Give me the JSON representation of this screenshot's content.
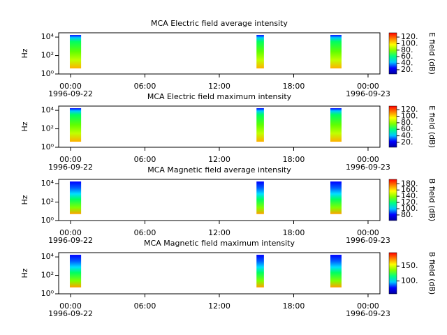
{
  "chart_data": [
    {
      "type": "spectrogram",
      "title": "MCA  Electric field average intensity",
      "ylabel": "Hz",
      "colorbar_label": "E field (dB)",
      "colormap": [
        "#0000a0",
        "#0000ff",
        "#00c8ff",
        "#00ff80",
        "#80ff00",
        "#ffff00",
        "#ff8000",
        "#ff0000"
      ],
      "xlim": [
        -0.96,
        24.96
      ],
      "xticks": [
        {
          "value": 0,
          "label": "00:00"
        },
        {
          "value": 6,
          "label": "06:00"
        },
        {
          "value": 12,
          "label": "12:00"
        },
        {
          "value": 18,
          "label": "18:00"
        },
        {
          "value": 24,
          "label": "00:00"
        }
      ],
      "x_dates": [
        {
          "value": 0,
          "label": "1996-09-22"
        },
        {
          "value": 24,
          "label": "1996-09-23"
        }
      ],
      "log_y": true,
      "ylim": [
        1,
        29000
      ],
      "yticks": [
        {
          "value": 1,
          "label": "10⁰"
        },
        {
          "value": 100,
          "label": "10²"
        },
        {
          "value": 10000,
          "label": "10⁴"
        }
      ],
      "clim": [
        7,
        133
      ],
      "cticks": [
        {
          "value": 20,
          "label": "20."
        },
        {
          "value": 40,
          "label": "40."
        },
        {
          "value": 60,
          "label": "60."
        },
        {
          "value": 80,
          "label": "80."
        },
        {
          "value": 100,
          "label": "100."
        },
        {
          "value": 120,
          "label": "120."
        }
      ],
      "segments": [
        {
          "start": -0.06,
          "end": 0.85,
          "freq": [
            4,
            17000
          ]
        },
        {
          "start": 15.0,
          "end": 15.6,
          "freq": [
            4,
            17000
          ]
        },
        {
          "start": 20.96,
          "end": 21.86,
          "freq": [
            4,
            17000
          ]
        }
      ]
    },
    {
      "type": "spectrogram",
      "title": "MCA  Electric field maximum intensity",
      "ylabel": "Hz",
      "colorbar_label": "E field (dB)",
      "colormap": [
        "#0000a0",
        "#0000ff",
        "#00c8ff",
        "#00ff80",
        "#80ff00",
        "#ffff00",
        "#ff8000",
        "#ff0000"
      ],
      "xlim": [
        -0.96,
        24.96
      ],
      "xticks": [
        {
          "value": 0,
          "label": "00:00"
        },
        {
          "value": 6,
          "label": "06:00"
        },
        {
          "value": 12,
          "label": "12:00"
        },
        {
          "value": 18,
          "label": "18:00"
        },
        {
          "value": 24,
          "label": "00:00"
        }
      ],
      "x_dates": [
        {
          "value": 0,
          "label": "1996-09-22"
        },
        {
          "value": 24,
          "label": "1996-09-23"
        }
      ],
      "log_y": true,
      "ylim": [
        1,
        29000
      ],
      "yticks": [
        {
          "value": 1,
          "label": "10⁰"
        },
        {
          "value": 100,
          "label": "10²"
        },
        {
          "value": 10000,
          "label": "10⁴"
        }
      ],
      "clim": [
        5,
        131
      ],
      "cticks": [
        {
          "value": 20,
          "label": "20."
        },
        {
          "value": 40,
          "label": "40."
        },
        {
          "value": 60,
          "label": "60."
        },
        {
          "value": 80,
          "label": "80."
        },
        {
          "value": 100,
          "label": "100."
        },
        {
          "value": 120,
          "label": "120."
        }
      ],
      "segments": [
        {
          "start": -0.06,
          "end": 0.85,
          "freq": [
            4,
            17000
          ]
        },
        {
          "start": 15.0,
          "end": 15.6,
          "freq": [
            4,
            17000
          ]
        },
        {
          "start": 20.96,
          "end": 21.86,
          "freq": [
            4,
            17000
          ]
        }
      ]
    },
    {
      "type": "spectrogram",
      "title": "MCA  Magnetic field average intensity",
      "ylabel": "Hz",
      "colorbar_label": "B field (dB)",
      "colormap": [
        "#0000a0",
        "#0000ff",
        "#00c8ff",
        "#00ff80",
        "#80ff00",
        "#ffff00",
        "#ff8000",
        "#ff0000"
      ],
      "xlim": [
        -0.96,
        24.96
      ],
      "xticks": [
        {
          "value": 0,
          "label": "00:00"
        },
        {
          "value": 6,
          "label": "06:00"
        },
        {
          "value": 12,
          "label": "12:00"
        },
        {
          "value": 18,
          "label": "18:00"
        },
        {
          "value": 24,
          "label": "00:00"
        }
      ],
      "x_dates": [
        {
          "value": 0,
          "label": "1996-09-22"
        },
        {
          "value": 24,
          "label": "1996-09-23"
        }
      ],
      "log_y": true,
      "ylim": [
        1,
        29000
      ],
      "yticks": [
        {
          "value": 1,
          "label": "10⁰"
        },
        {
          "value": 100,
          "label": "10²"
        },
        {
          "value": 10000,
          "label": "10⁴"
        }
      ],
      "clim": [
        62,
        194
      ],
      "cticks": [
        {
          "value": 80,
          "label": "80."
        },
        {
          "value": 100,
          "label": "100."
        },
        {
          "value": 120,
          "label": "120."
        },
        {
          "value": 140,
          "label": "140."
        },
        {
          "value": 160,
          "label": "160."
        },
        {
          "value": 180,
          "label": "180."
        }
      ],
      "segments": [
        {
          "start": -0.06,
          "end": 0.85,
          "freq": [
            5,
            17000
          ]
        },
        {
          "start": 15.0,
          "end": 15.6,
          "freq": [
            5,
            17000
          ]
        },
        {
          "start": 20.96,
          "end": 21.86,
          "freq": [
            5,
            17000
          ]
        }
      ]
    },
    {
      "type": "spectrogram",
      "title": "MCA  Magnetic field maximum intensity",
      "ylabel": "Hz",
      "colorbar_label": "B field (dB)",
      "colormap": [
        "#0000a0",
        "#0000ff",
        "#00c8ff",
        "#00ff80",
        "#80ff00",
        "#ffff00",
        "#ff8000",
        "#ff0000"
      ],
      "xlim": [
        -0.96,
        24.96
      ],
      "xticks": [
        {
          "value": 0,
          "label": "00:00"
        },
        {
          "value": 6,
          "label": "06:00"
        },
        {
          "value": 12,
          "label": "12:00"
        },
        {
          "value": 18,
          "label": "18:00"
        },
        {
          "value": 24,
          "label": "00:00"
        }
      ],
      "x_dates": [
        {
          "value": 0,
          "label": "1996-09-22"
        },
        {
          "value": 24,
          "label": "1996-09-23"
        }
      ],
      "log_y": true,
      "ylim": [
        1,
        29000
      ],
      "yticks": [
        {
          "value": 1,
          "label": "10⁰"
        },
        {
          "value": 100,
          "label": "10²"
        },
        {
          "value": 10000,
          "label": "10⁴"
        }
      ],
      "clim": [
        57,
        195
      ],
      "cticks": [
        {
          "value": 100,
          "label": "100."
        },
        {
          "value": 150,
          "label": "150."
        }
      ],
      "segments": [
        {
          "start": -0.06,
          "end": 0.85,
          "freq": [
            5,
            17000
          ]
        },
        {
          "start": 15.0,
          "end": 15.6,
          "freq": [
            5,
            17000
          ]
        },
        {
          "start": 20.96,
          "end": 21.86,
          "freq": [
            5,
            17000
          ]
        }
      ]
    }
  ]
}
